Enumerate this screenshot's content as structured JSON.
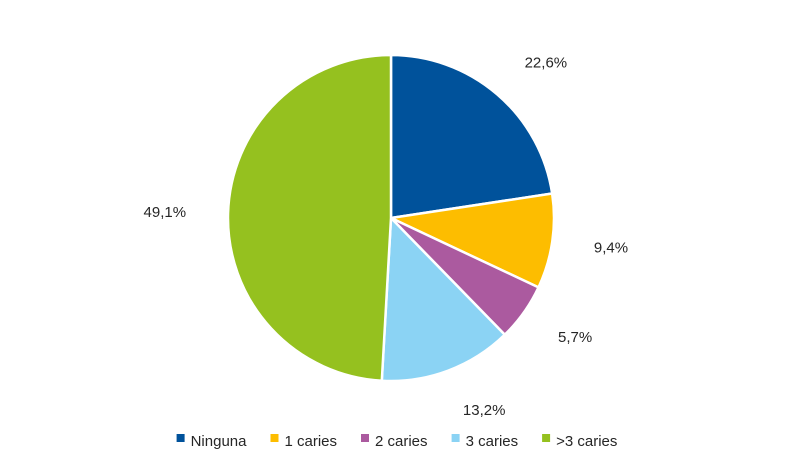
{
  "chart_data": {
    "type": "pie",
    "title": "",
    "slices": [
      {
        "label": "Ninguna",
        "value": 22.6,
        "display": "22,6%",
        "color": "#00529B"
      },
      {
        "label": "1 caries",
        "value": 9.4,
        "display": "9,4%",
        "color": "#FDBD00"
      },
      {
        "label": "2 caries",
        "value": 5.7,
        "display": "5,7%",
        "color": "#AB5A9F"
      },
      {
        "label": "3 caries",
        "value": 13.2,
        "display": "13,2%",
        "color": "#8BD3F4"
      },
      {
        "label": ">3 caries",
        "value": 49.1,
        "display": "49,1%",
        "color": "#95C11F"
      }
    ],
    "start_angle_deg": 0,
    "direction": "clockwise",
    "legend_position": "bottom",
    "unit": "%"
  }
}
